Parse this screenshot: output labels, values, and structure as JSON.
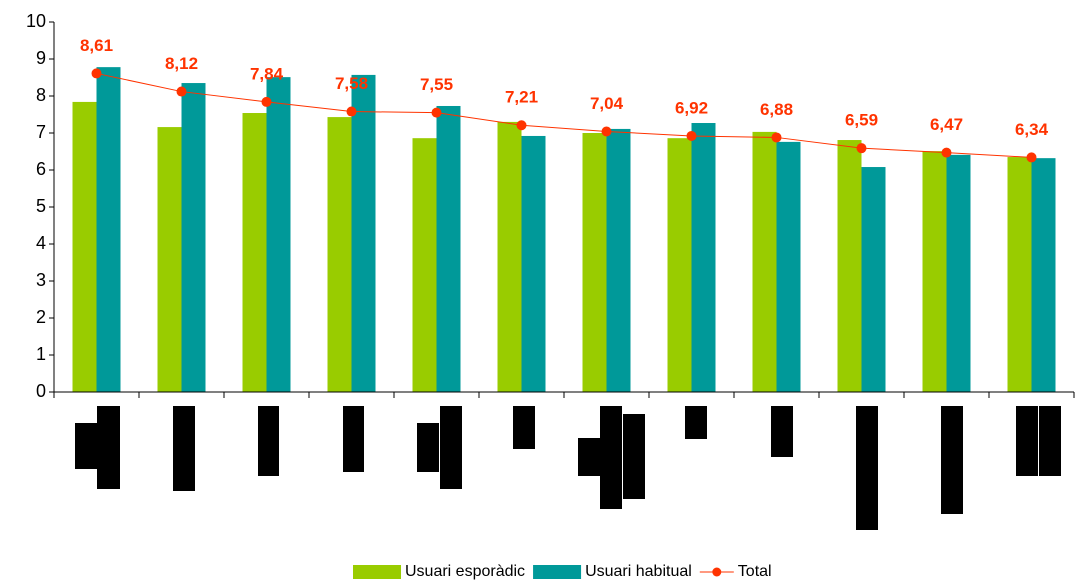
{
  "chart_data": {
    "type": "bar_line",
    "categories": [
      null,
      null,
      null,
      null,
      null,
      null,
      null,
      null,
      null,
      null,
      null,
      null
    ],
    "series": [
      {
        "name": "Usuari esporàdic",
        "color": "#99cc00",
        "kind": "bar",
        "values": [
          7.84,
          7.16,
          7.54,
          7.43,
          6.86,
          7.3,
          7.0,
          6.86,
          7.03,
          6.81,
          6.51,
          6.35
        ]
      },
      {
        "name": "Usuari habitual",
        "color": "#009999",
        "kind": "bar",
        "values": [
          8.78,
          8.35,
          8.51,
          8.57,
          7.73,
          6.92,
          7.11,
          7.27,
          6.76,
          6.08,
          6.41,
          6.32
        ]
      },
      {
        "name": "Total",
        "color": "#ff3300",
        "kind": "line",
        "values": [
          8.61,
          8.12,
          7.84,
          7.58,
          7.55,
          7.21,
          7.04,
          6.92,
          6.88,
          6.59,
          6.47,
          6.34
        ],
        "value_labels": [
          "8,61",
          "8,12",
          "7,84",
          "7,58",
          "7,55",
          "7,21",
          "7,04",
          "6,92",
          "6,88",
          "6,59",
          "6,47",
          "6,34"
        ]
      }
    ],
    "ylim": [
      0,
      10
    ],
    "yticks": [
      0,
      1,
      2,
      3,
      4,
      5,
      6,
      7,
      8,
      9,
      10
    ],
    "legend": "bottom"
  }
}
